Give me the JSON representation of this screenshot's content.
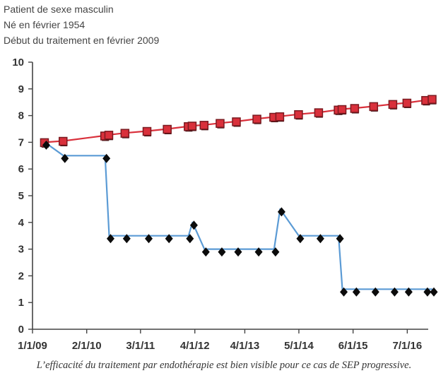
{
  "header": {
    "lines": [
      "Patient de sexe masculin",
      "Né en février 1954",
      "Début du traitement en février 2009"
    ]
  },
  "caption": "L’efficacité du traitement par endothérapie est bien visible pour ce cas de SEP progressive.",
  "chart_data": {
    "type": "line",
    "title": "",
    "xlabel": "",
    "ylabel": "",
    "ylim": [
      0,
      10
    ],
    "yticks": [
      0,
      1,
      2,
      3,
      4,
      5,
      6,
      7,
      8,
      9,
      10
    ],
    "xlim": [
      "2009-01-01",
      "2016-12-01"
    ],
    "xticks": [
      {
        "label": "1/1/09",
        "date": "2009-01-01"
      },
      {
        "label": "2/1/10",
        "date": "2010-02-01"
      },
      {
        "label": "3/1/11",
        "date": "2011-03-01"
      },
      {
        "label": "4/1/12",
        "date": "2012-04-01"
      },
      {
        "label": "4/1/13",
        "date": "2013-04-01"
      },
      {
        "label": "5/1/14",
        "date": "2014-05-01"
      },
      {
        "label": "6/1/15",
        "date": "2015-06-01"
      },
      {
        "label": "7/1/16",
        "date": "2016-07-01"
      }
    ],
    "grid": false,
    "legend": "none",
    "series": [
      {
        "color": "#d9303b",
        "marker": "square",
        "points": [
          [
            "2009-04-01",
            7.0
          ],
          [
            "2009-08-15",
            7.05
          ],
          [
            "2010-06-15",
            7.25
          ],
          [
            "2010-07-15",
            7.28
          ],
          [
            "2010-11-10",
            7.35
          ],
          [
            "2011-04-20",
            7.42
          ],
          [
            "2011-09-15",
            7.5
          ],
          [
            "2012-02-15",
            7.6
          ],
          [
            "2012-03-15",
            7.62
          ],
          [
            "2012-06-10",
            7.65
          ],
          [
            "2012-10-05",
            7.72
          ],
          [
            "2013-02-01",
            7.78
          ],
          [
            "2013-07-01",
            7.88
          ],
          [
            "2013-11-01",
            7.95
          ],
          [
            "2013-12-15",
            7.97
          ],
          [
            "2014-05-01",
            8.05
          ],
          [
            "2014-09-25",
            8.12
          ],
          [
            "2015-02-15",
            8.22
          ],
          [
            "2015-03-15",
            8.24
          ],
          [
            "2015-06-15",
            8.28
          ],
          [
            "2015-11-01",
            8.35
          ],
          [
            "2016-03-20",
            8.43
          ],
          [
            "2016-07-01",
            8.48
          ],
          [
            "2016-11-15",
            8.58
          ],
          [
            "2017-01-01",
            8.62
          ]
        ]
      },
      {
        "color": "#5b9bd5",
        "marker": "diamond",
        "points": [
          [
            "2009-04-01",
            7.0
          ],
          [
            "2009-08-15",
            6.5
          ],
          [
            "2010-06-15",
            6.5
          ],
          [
            "2010-07-15",
            3.5
          ],
          [
            "2010-11-10",
            3.5
          ],
          [
            "2011-04-20",
            3.5
          ],
          [
            "2011-09-15",
            3.5
          ],
          [
            "2012-02-15",
            3.5
          ],
          [
            "2012-03-15",
            4.0
          ],
          [
            "2012-06-10",
            3.0
          ],
          [
            "2012-10-05",
            3.0
          ],
          [
            "2013-02-01",
            3.0
          ],
          [
            "2013-07-01",
            3.0
          ],
          [
            "2013-11-01",
            3.0
          ],
          [
            "2013-12-15",
            4.5
          ],
          [
            "2014-05-01",
            3.5
          ],
          [
            "2014-09-25",
            3.5
          ],
          [
            "2015-02-15",
            3.5
          ],
          [
            "2015-03-15",
            1.5
          ],
          [
            "2015-06-15",
            1.5
          ],
          [
            "2015-11-01",
            1.5
          ],
          [
            "2016-03-20",
            1.5
          ],
          [
            "2016-07-01",
            1.5
          ],
          [
            "2016-11-15",
            1.5
          ],
          [
            "2017-01-01",
            1.5
          ]
        ]
      }
    ]
  }
}
